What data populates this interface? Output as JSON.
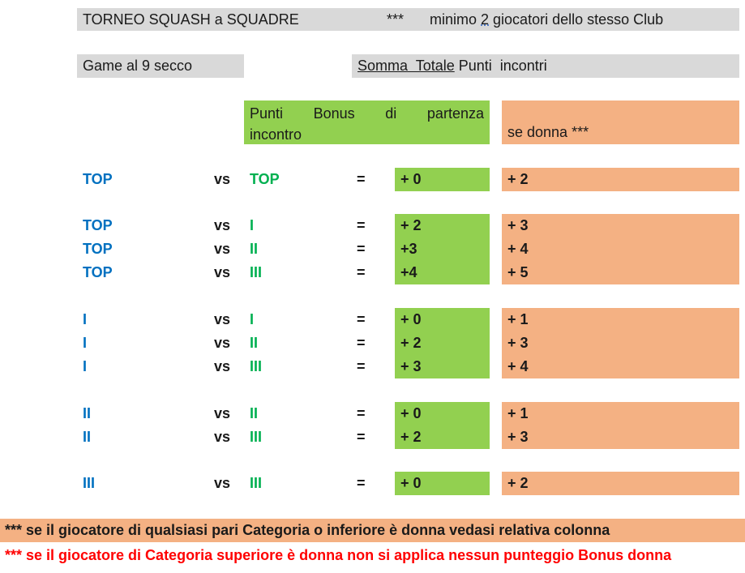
{
  "header": {
    "title": "TORNEO SQUASH a SQUADRE",
    "stars": "***",
    "note_prefix": "minimo ",
    "note_number": "2",
    "note_suffix": " giocatori dello stesso Club"
  },
  "subheader": {
    "game": "Game al 9 secco",
    "somma_a": "Somma  Totale",
    "somma_b": " Punti  incontri"
  },
  "columns": {
    "bonus_l1_words": [
      "Punti",
      "Bonus",
      "di",
      "partenza"
    ],
    "bonus_l2": "incontro",
    "donna": "se donna ***"
  },
  "vs_label": "vs",
  "eq_label": "=",
  "rows": [
    {
      "left": "TOP",
      "right": "TOP",
      "bonus": "+ 0",
      "donna": "+ 2"
    },
    {
      "left": "TOP",
      "right": "I",
      "bonus": "+ 2",
      "donna": "+ 3"
    },
    {
      "left": "TOP",
      "right": "II",
      "bonus": "+3",
      "donna": "+ 4"
    },
    {
      "left": "TOP",
      "right": "III",
      "bonus": "+4",
      "donna": "+ 5"
    },
    {
      "left": "I",
      "right": "I",
      "bonus": "+ 0",
      "donna": "+ 1"
    },
    {
      "left": "I",
      "right": "II",
      "bonus": "+ 2",
      "donna": "+ 3"
    },
    {
      "left": "I",
      "right": "III",
      "bonus": "+ 3",
      "donna": "+ 4"
    },
    {
      "left": "II",
      "right": "II",
      "bonus": "+ 0",
      "donna": "+ 1"
    },
    {
      "left": "II",
      "right": "III",
      "bonus": "+ 2",
      "donna": "+ 3"
    },
    {
      "left": "III",
      "right": "III",
      "bonus": "+ 0",
      "donna": "+ 2"
    }
  ],
  "footer": {
    "note1": "*** se il giocatore di qualsiasi pari Categoria o inferiore è donna vedasi relativa colonna",
    "note2": "*** se il giocatore di Categoria superiore è donna non si applica nessun punteggio Bonus donna"
  },
  "colors": {
    "gray": "#d9d9d9",
    "green": "#92d050",
    "peach": "#f4b183",
    "blue_text": "#0070c0",
    "green_text": "#00b050",
    "red_text": "#ff0000"
  }
}
